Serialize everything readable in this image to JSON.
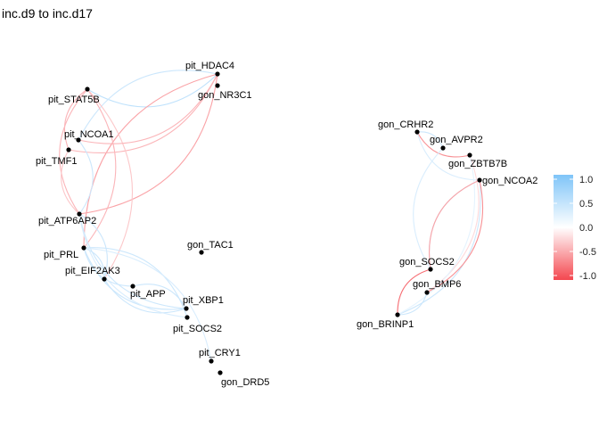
{
  "title": "inc.d9 to inc.d17",
  "legend": {
    "ticks": [
      1.0,
      0.5,
      0.0,
      -0.5,
      -1.0
    ],
    "tick_labels": [
      "1.0",
      "0.5",
      "0.0",
      "-0.5",
      "-1.0"
    ],
    "colors": {
      "high": "#7fc4f8",
      "mid": "#ffffff",
      "low": "#f4474f"
    },
    "range": [
      -1.0,
      1.0
    ]
  },
  "nodes": [
    {
      "id": "pit_HDAC4",
      "label": "pit_HDAC4"
    },
    {
      "id": "gon_NR3C1",
      "label": "gon_NR3C1"
    },
    {
      "id": "pit_STAT5B",
      "label": "pit_STAT5B"
    },
    {
      "id": "pit_NCOA1",
      "label": "pit_NCOA1"
    },
    {
      "id": "pit_TMF1",
      "label": "pit_TMF1"
    },
    {
      "id": "pit_ATP6AP2",
      "label": "pit_ATP6AP2"
    },
    {
      "id": "pit_PRL",
      "label": "pit_PRL"
    },
    {
      "id": "pit_EIF2AK3",
      "label": "pit_EIF2AK3"
    },
    {
      "id": "pit_APP",
      "label": "pit_APP"
    },
    {
      "id": "pit_XBP1",
      "label": "pit_XBP1"
    },
    {
      "id": "pit_SOCS2",
      "label": "pit_SOCS2"
    },
    {
      "id": "gon_TAC1",
      "label": "gon_TAC1"
    },
    {
      "id": "pit_CRY1",
      "label": "pit_CRY1"
    },
    {
      "id": "gon_DRD5",
      "label": "gon_DRD5"
    },
    {
      "id": "gon_CRHR2",
      "label": "gon_CRHR2"
    },
    {
      "id": "gon_AVPR2",
      "label": "gon_AVPR2"
    },
    {
      "id": "gon_ZBTB7B",
      "label": "gon_ZBTB7B"
    },
    {
      "id": "gon_NCOA2",
      "label": "gon_NCOA2"
    },
    {
      "id": "gon_SOCS2",
      "label": "gon_SOCS2"
    },
    {
      "id": "gon_BMP6",
      "label": "gon_BMP6"
    },
    {
      "id": "gon_BRINP1",
      "label": "gon_BRINP1"
    }
  ],
  "edges": [
    {
      "from": "pit_STAT5B",
      "to": "pit_HDAC4",
      "weight": 0.5
    },
    {
      "from": "pit_HDAC4",
      "to": "pit_ATP6AP2",
      "weight": -0.5
    },
    {
      "from": "pit_HDAC4",
      "to": "pit_PRL",
      "weight": -0.5
    },
    {
      "from": "pit_HDAC4",
      "to": "pit_TMF1",
      "weight": -0.4
    },
    {
      "from": "pit_HDAC4",
      "to": "pit_NCOA1",
      "weight": 0.4
    },
    {
      "from": "pit_STAT5B",
      "to": "pit_PRL",
      "weight": -0.4
    },
    {
      "from": "pit_STAT5B",
      "to": "pit_ATP6AP2",
      "weight": -0.4
    },
    {
      "from": "pit_STAT5B",
      "to": "pit_EIF2AK3",
      "weight": -0.3
    },
    {
      "from": "pit_NCOA1",
      "to": "pit_HDAC4",
      "weight": -0.4
    },
    {
      "from": "pit_TMF1",
      "to": "pit_STAT5B",
      "weight": -0.4
    },
    {
      "from": "pit_TMF1",
      "to": "pit_ATP6AP2",
      "weight": -0.3
    },
    {
      "from": "pit_NCOA1",
      "to": "pit_ATP6AP2",
      "weight": 0.4
    },
    {
      "from": "pit_ATP6AP2",
      "to": "pit_XBP1",
      "weight": 0.4
    },
    {
      "from": "pit_ATP6AP2",
      "to": "pit_EIF2AK3",
      "weight": 0.4
    },
    {
      "from": "pit_PRL",
      "to": "pit_XBP1",
      "weight": 0.4
    },
    {
      "from": "pit_PRL",
      "to": "pit_SOCS2",
      "weight": 0.4
    },
    {
      "from": "pit_PRL",
      "to": "pit_APP",
      "weight": 0.4
    },
    {
      "from": "pit_PRL",
      "to": "pit_EIF2AK3",
      "weight": 0.4
    },
    {
      "from": "pit_EIF2AK3",
      "to": "pit_XBP1",
      "weight": 0.4
    },
    {
      "from": "pit_APP",
      "to": "pit_XBP1",
      "weight": 0.4
    },
    {
      "from": "pit_ATP6AP2",
      "to": "pit_SOCS2",
      "weight": 0.3
    },
    {
      "from": "pit_PRL",
      "to": "pit_CRY1",
      "weight": 0.3
    },
    {
      "from": "gon_CRHR2",
      "to": "gon_ZBTB7B",
      "weight": -0.6
    },
    {
      "from": "gon_CRHR2",
      "to": "gon_AVPR2",
      "weight": 0.4
    },
    {
      "from": "gon_CRHR2",
      "to": "gon_NCOA2",
      "weight": 0.3
    },
    {
      "from": "gon_ZBTB7B",
      "to": "gon_BMP6",
      "weight": -0.2
    },
    {
      "from": "gon_AVPR2",
      "to": "gon_SOCS2",
      "weight": 0.3
    },
    {
      "from": "gon_NCOA2",
      "to": "gon_BRINP1",
      "weight": 0.4
    },
    {
      "from": "gon_NCOA2",
      "to": "gon_SOCS2",
      "weight": 0.4
    },
    {
      "from": "gon_NCOA2",
      "to": "gon_BMP6",
      "weight": -0.6
    },
    {
      "from": "gon_BRINP1",
      "to": "gon_ZBTB7B",
      "weight": 0.2
    },
    {
      "from": "gon_BRINP1",
      "to": "gon_SOCS2",
      "weight": -0.8
    },
    {
      "from": "gon_BRINP1",
      "to": "gon_BMP6",
      "weight": 0.4
    },
    {
      "from": "gon_SOCS2",
      "to": "gon_NCOA2",
      "weight": -0.5
    }
  ]
}
